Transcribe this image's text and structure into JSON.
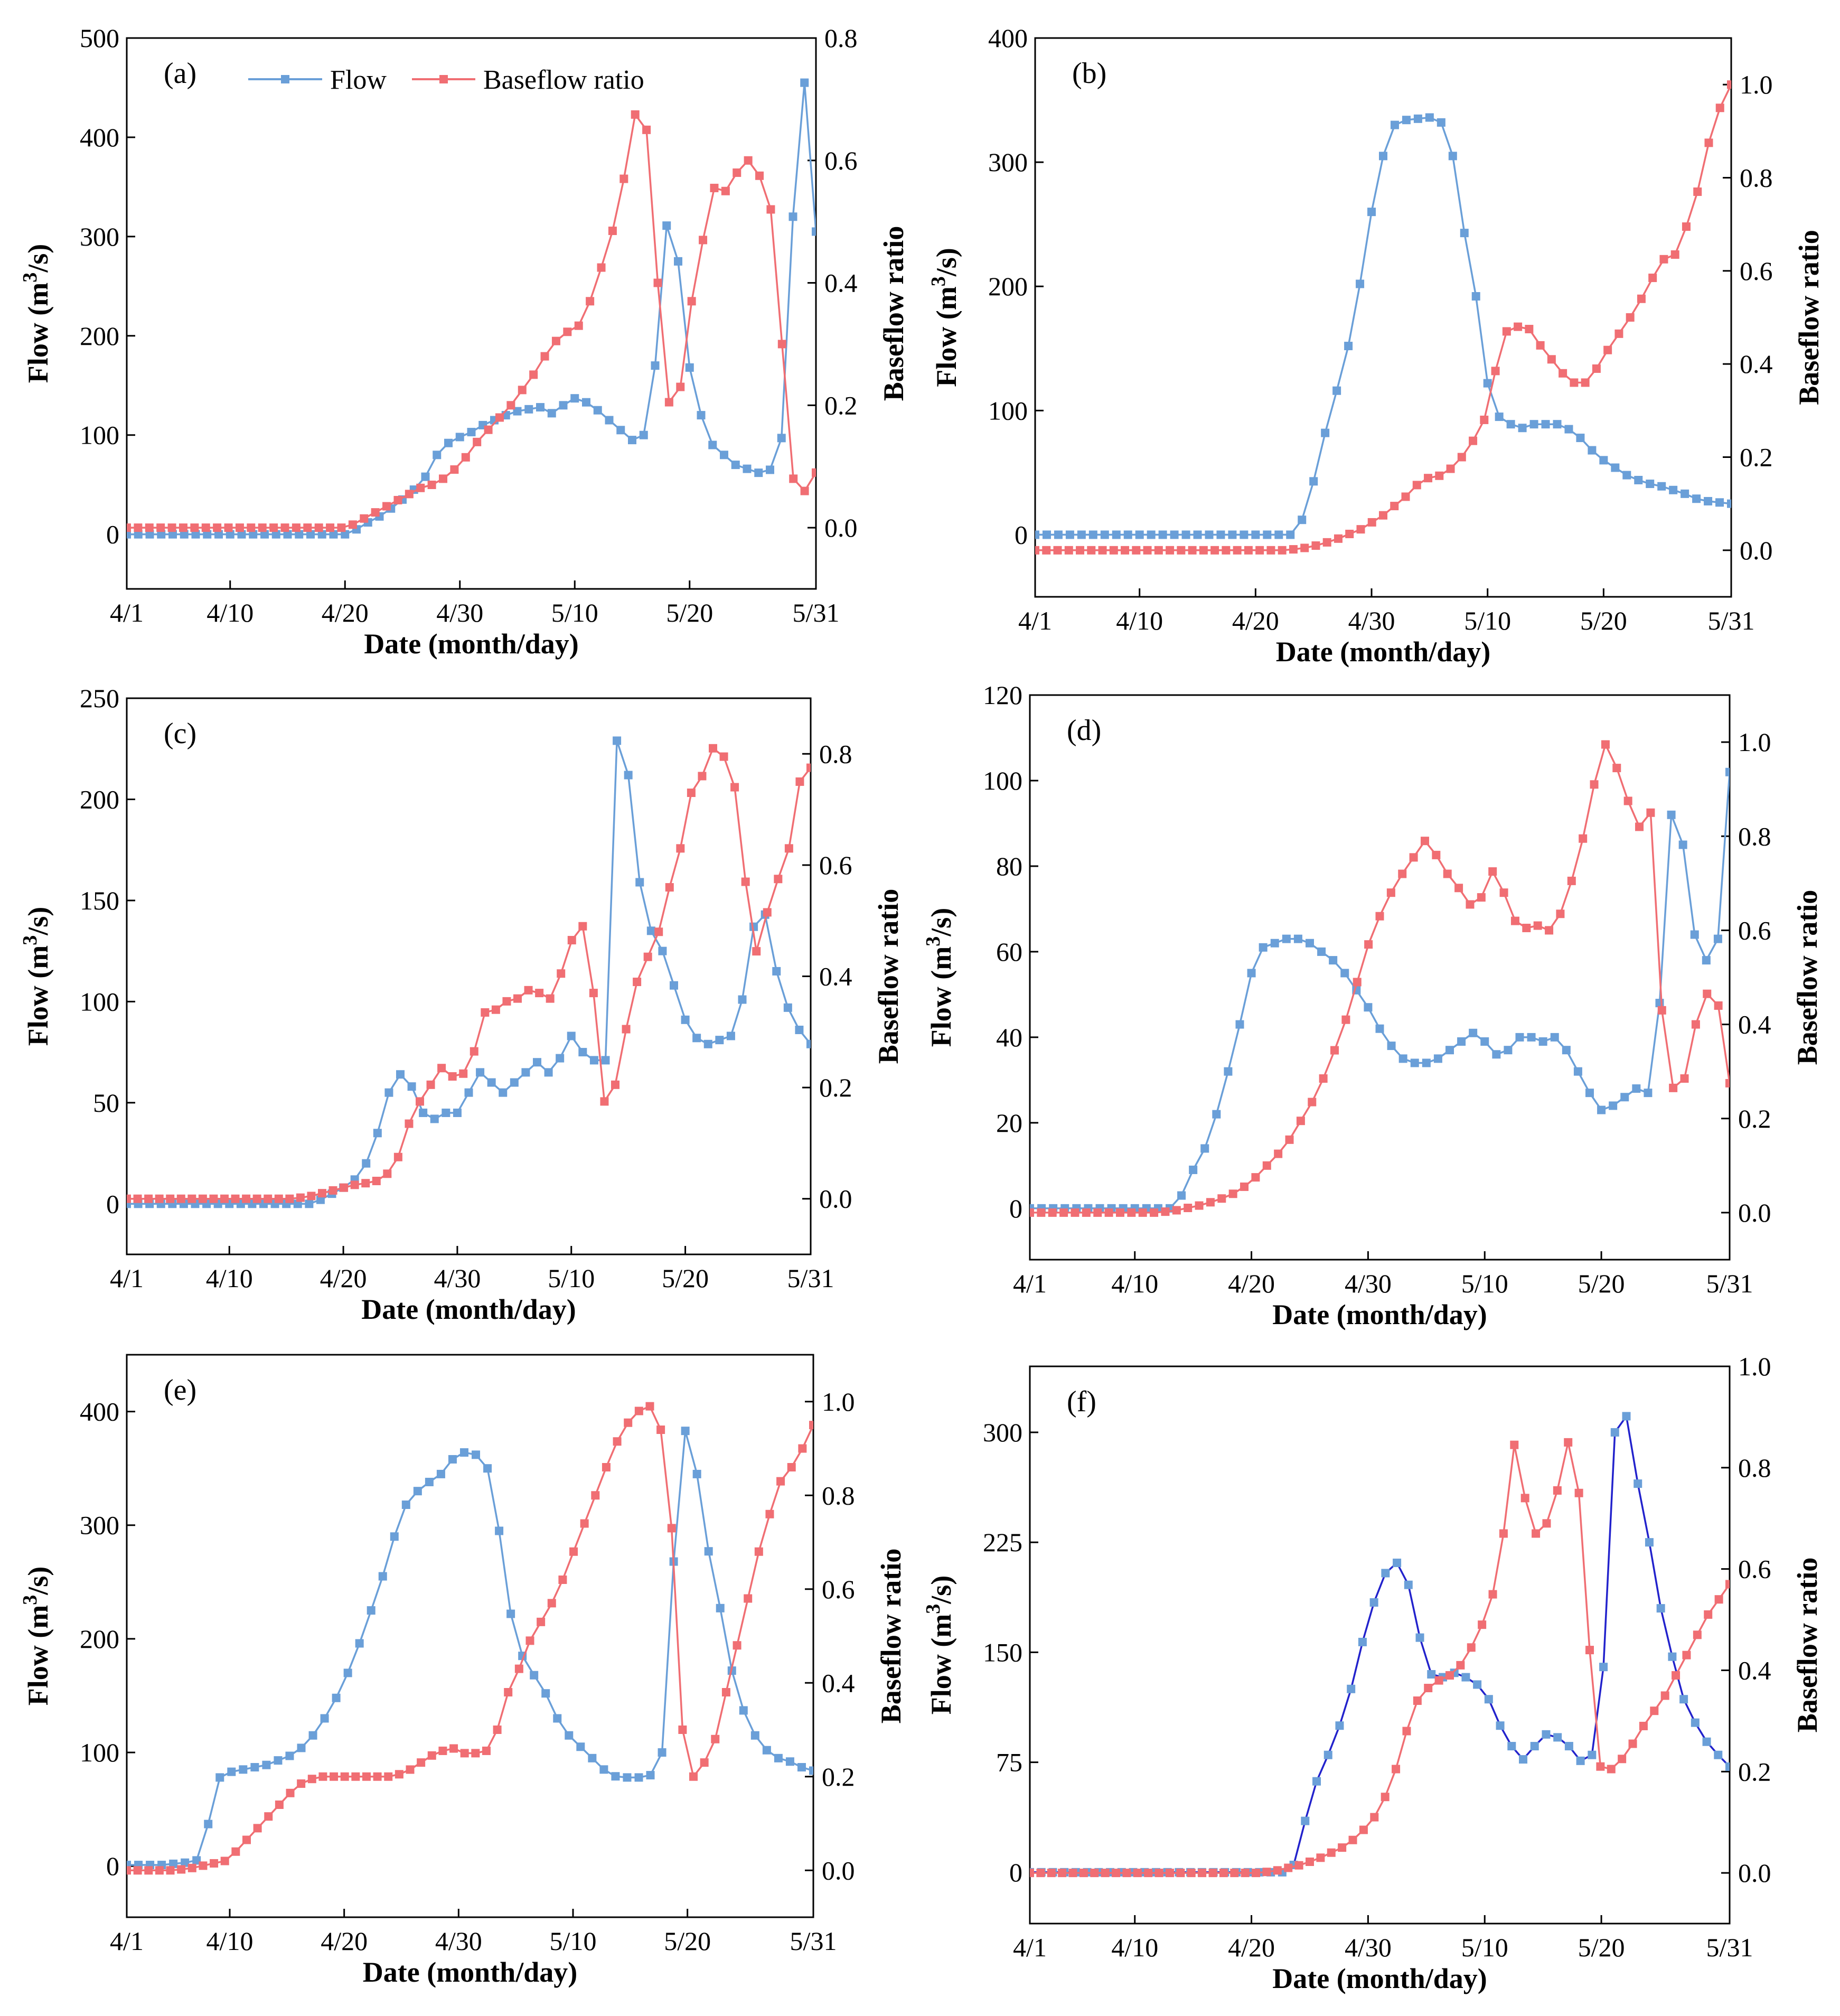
{
  "figure": {
    "legend": {
      "flow_label": "Flow",
      "baseflow_label": "Baseflow ratio"
    },
    "colors": {
      "flow": "#6a9fd8",
      "flow_dark": "#2222cc",
      "baseflow": "#f06e73"
    }
  },
  "chart_data": [
    {
      "id": "a",
      "type": "line",
      "panel_label": "(a)",
      "xlabel": "Date (month/day)",
      "ylabel": "Flow (m3/s)",
      "y2label": "Baseflow ratio",
      "x_ticks": [
        "4/1",
        "4/10",
        "4/20",
        "4/30",
        "5/10",
        "5/20",
        "5/31"
      ],
      "ylim": [
        -55,
        500
      ],
      "y_ticks": [
        0,
        100,
        200,
        300,
        400,
        500
      ],
      "y2lim": [
        -0.1,
        0.8
      ],
      "y2_ticks": [
        0.0,
        0.2,
        0.4,
        0.6,
        0.8
      ],
      "show_legend": true,
      "flow_color": "flow",
      "series": [
        {
          "name": "Flow",
          "axis": "left",
          "values": [
            0,
            0,
            0,
            0,
            0,
            0,
            0,
            0,
            0,
            0,
            0,
            0,
            0,
            0,
            0,
            0,
            0,
            0,
            0,
            0,
            5,
            12,
            18,
            26,
            35,
            45,
            58,
            80,
            92,
            98,
            103,
            110,
            115,
            120,
            124,
            126,
            128,
            122,
            130,
            137,
            133,
            125,
            115,
            105,
            95,
            100,
            170,
            311,
            275,
            168,
            120,
            90,
            80,
            70,
            66,
            62,
            65,
            97,
            320,
            455,
            305
          ]
        },
        {
          "name": "Baseflow ratio",
          "axis": "right",
          "values": [
            0,
            0,
            0,
            0,
            0,
            0,
            0,
            0,
            0,
            0,
            0,
            0,
            0,
            0,
            0,
            0,
            0,
            0,
            0,
            0,
            0.005,
            0.015,
            0.025,
            0.035,
            0.045,
            0.055,
            0.065,
            0.07,
            0.08,
            0.095,
            0.115,
            0.14,
            0.16,
            0.18,
            0.2,
            0.225,
            0.25,
            0.28,
            0.305,
            0.32,
            0.33,
            0.37,
            0.425,
            0.485,
            0.57,
            0.675,
            0.65,
            0.4,
            0.205,
            0.23,
            0.37,
            0.47,
            0.555,
            0.55,
            0.58,
            0.6,
            0.575,
            0.52,
            0.3,
            0.08,
            0.06,
            0.09
          ]
        }
      ]
    },
    {
      "id": "b",
      "type": "line",
      "panel_label": "(b)",
      "xlabel": "Date (month/day)",
      "ylabel": "Flow (m3/s)",
      "y2label": "Baseflow ratio",
      "x_ticks": [
        "4/1",
        "4/10",
        "4/20",
        "4/30",
        "5/10",
        "5/20",
        "5/31"
      ],
      "ylim": [
        -50,
        400
      ],
      "y_ticks": [
        0,
        100,
        200,
        300,
        400
      ],
      "y2lim": [
        -0.1,
        1.1
      ],
      "y2_ticks": [
        0.0,
        0.2,
        0.4,
        0.6,
        0.8,
        1.0
      ],
      "show_legend": false,
      "flow_color": "flow",
      "series": [
        {
          "name": "Flow",
          "axis": "left",
          "values": [
            0,
            0,
            0,
            0,
            0,
            0,
            0,
            0,
            0,
            0,
            0,
            0,
            0,
            0,
            0,
            0,
            0,
            0,
            0,
            0,
            0,
            0,
            0,
            12,
            43,
            82,
            116,
            152,
            202,
            260,
            305,
            330,
            334,
            335,
            336,
            332,
            305,
            243,
            192,
            122,
            95,
            89,
            86,
            89,
            89,
            89,
            85,
            78,
            68,
            60,
            54,
            48,
            44,
            41,
            39,
            36,
            33,
            29,
            27,
            26,
            25
          ]
        },
        {
          "name": "Baseflow ratio",
          "axis": "right",
          "values": [
            0,
            0,
            0,
            0,
            0,
            0,
            0,
            0,
            0,
            0,
            0,
            0,
            0,
            0,
            0,
            0,
            0,
            0,
            0,
            0,
            0,
            0,
            0,
            0.002,
            0.005,
            0.01,
            0.017,
            0.025,
            0.035,
            0.045,
            0.06,
            0.075,
            0.095,
            0.115,
            0.14,
            0.155,
            0.16,
            0.175,
            0.2,
            0.235,
            0.28,
            0.385,
            0.47,
            0.48,
            0.475,
            0.44,
            0.41,
            0.38,
            0.36,
            0.36,
            0.39,
            0.43,
            0.465,
            0.5,
            0.54,
            0.585,
            0.625,
            0.635,
            0.695,
            0.77,
            0.875,
            0.95,
            1.0
          ]
        }
      ]
    },
    {
      "id": "c",
      "type": "line",
      "panel_label": "(c)",
      "xlabel": "Date (month/day)",
      "ylabel": "Flow (m3/s)",
      "y2label": "Baseflow ratio",
      "x_ticks": [
        "4/1",
        "4/10",
        "4/20",
        "4/30",
        "5/10",
        "5/20",
        "5/31"
      ],
      "ylim": [
        -25,
        250
      ],
      "y_ticks": [
        0,
        50,
        100,
        150,
        200,
        250
      ],
      "y2lim": [
        -0.1,
        0.9
      ],
      "y2_ticks": [
        0.0,
        0.2,
        0.4,
        0.6,
        0.8
      ],
      "show_legend": false,
      "flow_color": "flow",
      "series": [
        {
          "name": "Flow",
          "axis": "left",
          "values": [
            0,
            0,
            0,
            0,
            0,
            0,
            0,
            0,
            0,
            0,
            0,
            0,
            0,
            0,
            0,
            0,
            0,
            2,
            5,
            8,
            12,
            20,
            35,
            55,
            64,
            58,
            45,
            42,
            45,
            45,
            55,
            65,
            60,
            55,
            60,
            65,
            70,
            65,
            72,
            83,
            75,
            71,
            71,
            229,
            212,
            159,
            135,
            125,
            108,
            91,
            82,
            79,
            81,
            83,
            101,
            137,
            143,
            115,
            97,
            86,
            79
          ]
        },
        {
          "name": "Baseflow ratio",
          "axis": "right",
          "values": [
            0,
            0,
            0,
            0,
            0,
            0,
            0,
            0,
            0,
            0,
            0,
            0,
            0,
            0,
            0,
            0,
            0.002,
            0.005,
            0.01,
            0.015,
            0.02,
            0.025,
            0.028,
            0.032,
            0.045,
            0.075,
            0.135,
            0.175,
            0.205,
            0.235,
            0.22,
            0.225,
            0.265,
            0.335,
            0.34,
            0.355,
            0.36,
            0.375,
            0.37,
            0.36,
            0.405,
            0.465,
            0.49,
            0.37,
            0.175,
            0.205,
            0.305,
            0.39,
            0.435,
            0.48,
            0.56,
            0.63,
            0.73,
            0.76,
            0.81,
            0.795,
            0.74,
            0.57,
            0.445,
            0.515,
            0.575,
            0.63,
            0.75,
            0.775
          ]
        }
      ]
    },
    {
      "id": "d",
      "type": "line",
      "panel_label": "(d)",
      "xlabel": "Date (month/day)",
      "ylabel": "Flow (m3/s)",
      "y2label": "Baseflow ratio",
      "x_ticks": [
        "4/1",
        "4/10",
        "4/20",
        "4/30",
        "5/10",
        "5/20",
        "5/31"
      ],
      "ylim": [
        -12,
        120
      ],
      "y_ticks": [
        0,
        20,
        40,
        60,
        80,
        100,
        120
      ],
      "y2lim": [
        -0.1,
        1.1
      ],
      "y2_ticks": [
        0.0,
        0.2,
        0.4,
        0.6,
        0.8,
        1.0
      ],
      "show_legend": false,
      "flow_color": "flow",
      "series": [
        {
          "name": "Flow",
          "axis": "left",
          "values": [
            0,
            0,
            0,
            0,
            0,
            0,
            0,
            0,
            0,
            0,
            0,
            0,
            0,
            3,
            9,
            14,
            22,
            32,
            43,
            55,
            61,
            62,
            63,
            63,
            62,
            60,
            58,
            55,
            51,
            47,
            42,
            38,
            35,
            34,
            34,
            35,
            37,
            39,
            41,
            39,
            36,
            37,
            40,
            40,
            39,
            40,
            37,
            32,
            27,
            23,
            24,
            26,
            28,
            27,
            48,
            92,
            85,
            64,
            58,
            63,
            102
          ]
        },
        {
          "name": "Baseflow ratio",
          "axis": "right",
          "values": [
            0,
            0,
            0,
            0,
            0,
            0,
            0,
            0,
            0,
            0,
            0,
            0,
            0.002,
            0.005,
            0.01,
            0.015,
            0.022,
            0.03,
            0.04,
            0.055,
            0.075,
            0.1,
            0.125,
            0.155,
            0.195,
            0.235,
            0.285,
            0.345,
            0.41,
            0.49,
            0.57,
            0.63,
            0.68,
            0.72,
            0.755,
            0.79,
            0.76,
            0.72,
            0.69,
            0.655,
            0.67,
            0.725,
            0.68,
            0.62,
            0.605,
            0.61,
            0.6,
            0.635,
            0.705,
            0.795,
            0.91,
            0.995,
            0.945,
            0.875,
            0.82,
            0.85,
            0.43,
            0.265,
            0.285,
            0.4,
            0.465,
            0.44,
            0.275
          ]
        }
      ]
    },
    {
      "id": "e",
      "type": "line",
      "panel_label": "(e)",
      "xlabel": "Date (month/day)",
      "ylabel": "Flow (m3/s)",
      "y2label": "Baseflow ratio",
      "x_ticks": [
        "4/1",
        "4/10",
        "4/20",
        "4/30",
        "5/10",
        "5/20",
        "5/31"
      ],
      "ylim": [
        -45,
        450
      ],
      "y_ticks": [
        0,
        100,
        200,
        300,
        400
      ],
      "y2lim": [
        -0.1,
        1.1
      ],
      "y2_ticks": [
        0.0,
        0.2,
        0.4,
        0.6,
        0.8,
        1.0
      ],
      "show_legend": false,
      "flow_color": "flow",
      "series": [
        {
          "name": "Flow",
          "axis": "left",
          "values": [
            1,
            1,
            1,
            1,
            2,
            3,
            5,
            37,
            78,
            83,
            85,
            87,
            89,
            93,
            97,
            104,
            115,
            130,
            148,
            170,
            196,
            225,
            255,
            290,
            318,
            330,
            338,
            345,
            358,
            364,
            362,
            350,
            295,
            222,
            185,
            168,
            152,
            130,
            115,
            105,
            95,
            85,
            79,
            78,
            78,
            80,
            100,
            268,
            383,
            345,
            277,
            227,
            172,
            137,
            115,
            102,
            95,
            92,
            87,
            84
          ]
        },
        {
          "name": "Baseflow ratio",
          "axis": "right",
          "values": [
            0,
            0,
            0,
            0,
            0,
            0.002,
            0.005,
            0.01,
            0.015,
            0.02,
            0.04,
            0.065,
            0.09,
            0.115,
            0.14,
            0.165,
            0.185,
            0.195,
            0.2,
            0.2,
            0.2,
            0.2,
            0.2,
            0.2,
            0.2,
            0.205,
            0.215,
            0.23,
            0.245,
            0.255,
            0.26,
            0.25,
            0.25,
            0.255,
            0.3,
            0.38,
            0.43,
            0.49,
            0.53,
            0.57,
            0.62,
            0.68,
            0.74,
            0.8,
            0.86,
            0.915,
            0.955,
            0.98,
            0.99,
            0.94,
            0.73,
            0.3,
            0.2,
            0.23,
            0.28,
            0.38,
            0.48,
            0.58,
            0.68,
            0.76,
            0.83,
            0.86,
            0.9,
            0.95
          ]
        }
      ]
    },
    {
      "id": "f",
      "type": "line",
      "panel_label": "(f)",
      "xlabel": "Date (month/day)",
      "ylabel": "Flow (m3/s)",
      "y2label": "Baseflow ratio",
      "x_ticks": [
        "4/1",
        "4/10",
        "4/20",
        "4/30",
        "5/10",
        "5/20",
        "5/31"
      ],
      "ylim": [
        -35,
        345
      ],
      "y_ticks": [
        0,
        75,
        150,
        225,
        300
      ],
      "y2lim": [
        -0.1,
        1.0
      ],
      "y2_ticks": [
        0.0,
        0.2,
        0.4,
        0.6,
        0.8,
        1.0
      ],
      "show_legend": false,
      "flow_color": "flow_dark",
      "series": [
        {
          "name": "Flow",
          "axis": "left",
          "values": [
            0,
            0,
            0,
            0,
            0,
            0,
            0,
            0,
            0,
            0,
            0,
            0,
            0,
            0,
            0,
            0,
            0,
            0,
            0,
            0,
            0,
            0,
            0,
            5,
            35,
            62,
            80,
            100,
            125,
            157,
            184,
            204,
            211,
            196,
            160,
            135,
            133,
            136,
            133,
            128,
            118,
            100,
            86,
            77,
            86,
            94,
            92,
            86,
            76,
            80,
            140,
            300,
            311,
            265,
            225,
            180,
            147,
            118,
            102,
            89,
            80,
            72
          ]
        },
        {
          "name": "Baseflow ratio",
          "axis": "right",
          "values": [
            0,
            0,
            0,
            0,
            0,
            0,
            0,
            0,
            0,
            0,
            0,
            0,
            0,
            0,
            0,
            0,
            0,
            0,
            0,
            0,
            0,
            0,
            0.002,
            0.005,
            0.01,
            0.015,
            0.022,
            0.03,
            0.04,
            0.05,
            0.065,
            0.085,
            0.11,
            0.15,
            0.205,
            0.28,
            0.34,
            0.365,
            0.38,
            0.39,
            0.41,
            0.445,
            0.49,
            0.55,
            0.67,
            0.845,
            0.74,
            0.67,
            0.69,
            0.755,
            0.85,
            0.75,
            0.44,
            0.21,
            0.205,
            0.225,
            0.255,
            0.29,
            0.32,
            0.35,
            0.39,
            0.43,
            0.47,
            0.51,
            0.54,
            0.57
          ]
        }
      ]
    }
  ]
}
